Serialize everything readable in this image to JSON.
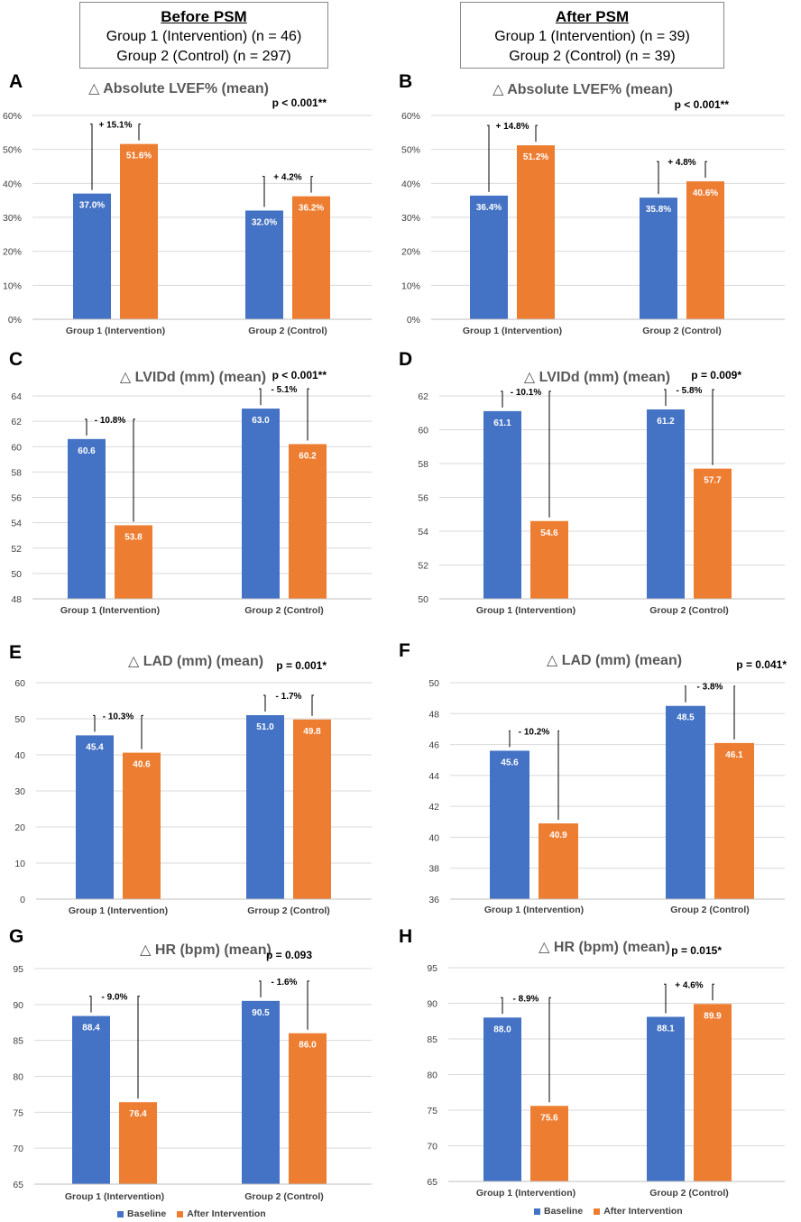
{
  "headers": {
    "before": {
      "title": "Before PSM",
      "line1": "Group 1 (Intervention) (n = 46)",
      "line2": "Group 2 (Control) (n = 297)"
    },
    "after": {
      "title": "After PSM",
      "line1": "Group 1 (Intervention) (n = 39)",
      "line2": "Group 2 (Control) (n = 39)"
    }
  },
  "legend": {
    "baseline": "Baseline",
    "after": "After Intervention",
    "baseline_color": "#4472C4",
    "after_color": "#ED7D31"
  },
  "chart_data": [
    {
      "panel": "A",
      "type": "bar",
      "title": "△ Absolute LVEF% (mean)",
      "p": "p < 0.001**",
      "categories": [
        "Group 1 (Intervention)",
        "Group 2 (Control)"
      ],
      "series": [
        {
          "name": "Baseline",
          "values": [
            37.0,
            32.0
          ]
        },
        {
          "name": "After Intervention",
          "values": [
            51.6,
            36.2
          ]
        }
      ],
      "value_labels": [
        [
          "37.0%",
          "32.0%"
        ],
        [
          "51.6%",
          "36.2%"
        ]
      ],
      "changes": [
        "+ 15.1%",
        "+ 4.2%"
      ],
      "ylim": [
        0,
        60
      ],
      "yticks": [
        0,
        10,
        20,
        30,
        40,
        50,
        60
      ],
      "tick_suffix": "%"
    },
    {
      "panel": "B",
      "type": "bar",
      "title": "△ Absolute LVEF% (mean)",
      "p": "p < 0.001**",
      "categories": [
        "Group 1 (Intervention)",
        "Group 2 (Control)"
      ],
      "series": [
        {
          "name": "Baseline",
          "values": [
            36.4,
            35.8
          ]
        },
        {
          "name": "After Intervention",
          "values": [
            51.2,
            40.6
          ]
        }
      ],
      "value_labels": [
        [
          "36.4%",
          "35.8%"
        ],
        [
          "51.2%",
          "40.6%"
        ]
      ],
      "changes": [
        "+ 14.8%",
        "+ 4.8%"
      ],
      "ylim": [
        0,
        60
      ],
      "yticks": [
        0,
        10,
        20,
        30,
        40,
        50,
        60
      ],
      "tick_suffix": "%"
    },
    {
      "panel": "C",
      "type": "bar",
      "title": "△ LVIDd (mm) (mean)",
      "p": "p < 0.001**",
      "categories": [
        "Group 1 (Intervention)",
        "Group 2 (Control)"
      ],
      "series": [
        {
          "name": "Baseline",
          "values": [
            60.6,
            63.0
          ]
        },
        {
          "name": "After Intervention",
          "values": [
            53.8,
            60.2
          ]
        }
      ],
      "value_labels": [
        [
          "60.6",
          "63.0"
        ],
        [
          "53.8",
          "60.2"
        ]
      ],
      "changes": [
        "- 10.8%",
        "- 5.1%"
      ],
      "ylim": [
        48,
        64
      ],
      "yticks": [
        48,
        50,
        52,
        54,
        56,
        58,
        60,
        62,
        64
      ],
      "tick_suffix": ""
    },
    {
      "panel": "D",
      "type": "bar",
      "title": "△ LVIDd (mm) (mean)",
      "p": "p = 0.009*",
      "categories": [
        "Group 1 (Intervention)",
        "Group 2 (Control)"
      ],
      "series": [
        {
          "name": "Baseline",
          "values": [
            61.1,
            61.2
          ]
        },
        {
          "name": "After Intervention",
          "values": [
            54.6,
            57.7
          ]
        }
      ],
      "value_labels": [
        [
          "61.1",
          "61.2"
        ],
        [
          "54.6",
          "57.7"
        ]
      ],
      "changes": [
        "- 10.1%",
        "- 5.8%"
      ],
      "ylim": [
        50,
        62
      ],
      "yticks": [
        50,
        52,
        54,
        56,
        58,
        60,
        62
      ],
      "tick_suffix": ""
    },
    {
      "panel": "E",
      "type": "bar",
      "title": "△ LAD (mm) (mean)",
      "p": "p = 0.001*",
      "categories": [
        "Group 1 (Intervention)",
        "Grroup 2 (Control)"
      ],
      "series": [
        {
          "name": "Baseline",
          "values": [
            45.4,
            51.0
          ]
        },
        {
          "name": "After Intervention",
          "values": [
            40.6,
            49.8
          ]
        }
      ],
      "value_labels": [
        [
          "45.4",
          "51.0"
        ],
        [
          "40.6",
          "49.8"
        ]
      ],
      "changes": [
        "- 10.3%",
        "- 1.7%"
      ],
      "ylim": [
        0,
        60
      ],
      "yticks": [
        0,
        10,
        20,
        30,
        40,
        50,
        60
      ],
      "tick_suffix": ""
    },
    {
      "panel": "F",
      "type": "bar",
      "title": "△ LAD (mm) (mean)",
      "p": "p = 0.041*",
      "categories": [
        "Group 1 (Intervention)",
        "Group 2 (Control)"
      ],
      "series": [
        {
          "name": "Baseline",
          "values": [
            45.6,
            48.5
          ]
        },
        {
          "name": "After Intervention",
          "values": [
            40.9,
            46.1
          ]
        }
      ],
      "value_labels": [
        [
          "45.6",
          "48.5"
        ],
        [
          "40.9",
          "46.1"
        ]
      ],
      "changes": [
        "- 10.2%",
        "- 3.8%"
      ],
      "ylim": [
        36,
        50
      ],
      "yticks": [
        36,
        38,
        40,
        42,
        44,
        46,
        48,
        50
      ],
      "tick_suffix": ""
    },
    {
      "panel": "G",
      "type": "bar",
      "title": "△ HR (bpm) (mean)",
      "p": "p = 0.093",
      "categories": [
        "Group 1 (Intervention)",
        "Group 2 (Control)"
      ],
      "series": [
        {
          "name": "Baseline",
          "values": [
            88.4,
            90.5
          ]
        },
        {
          "name": "After Intervention",
          "values": [
            76.4,
            86.0
          ]
        }
      ],
      "value_labels": [
        [
          "88.4",
          "90.5"
        ],
        [
          "76.4",
          "86.0"
        ]
      ],
      "changes": [
        "- 9.0%",
        "- 1.6%"
      ],
      "ylim": [
        65,
        95
      ],
      "yticks": [
        65,
        70,
        75,
        80,
        85,
        90,
        95
      ],
      "tick_suffix": ""
    },
    {
      "panel": "H",
      "type": "bar",
      "title": "△ HR (bpm) (mean)",
      "p": "p = 0.015*",
      "categories": [
        "Group 1 (Intervention)",
        "Group 2 (Control)"
      ],
      "series": [
        {
          "name": "Baseline",
          "values": [
            88.0,
            88.1
          ]
        },
        {
          "name": "After Intervention",
          "values": [
            75.6,
            89.9
          ]
        }
      ],
      "value_labels": [
        [
          "88.0",
          "88.1"
        ],
        [
          "75.6",
          "89.9"
        ]
      ],
      "changes": [
        "- 8.9%",
        "+ 4.6%"
      ],
      "ylim": [
        65,
        95
      ],
      "yticks": [
        65,
        70,
        75,
        80,
        85,
        90,
        95
      ],
      "tick_suffix": ""
    }
  ]
}
